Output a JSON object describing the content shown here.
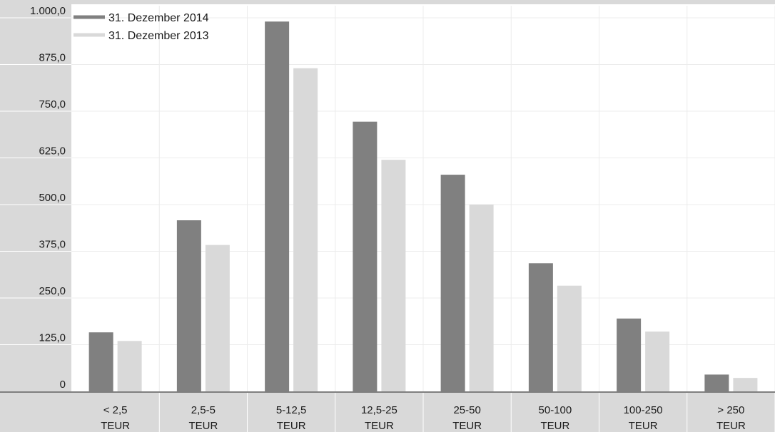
{
  "chart_data": {
    "type": "bar",
    "title": "",
    "xlabel": "",
    "ylabel": "",
    "ylim": [
      0,
      1000
    ],
    "yticks": [
      0,
      125,
      250,
      375,
      500,
      625,
      750,
      875,
      1000
    ],
    "ytick_labels": [
      "0",
      "125,0",
      "250,0",
      "375,0",
      "500,0",
      "625,0",
      "750,0",
      "875,0",
      "1.000,0"
    ],
    "categories": [
      [
        "< 2,5",
        "TEUR"
      ],
      [
        "2,5-5",
        "TEUR"
      ],
      [
        "5-12,5",
        "TEUR"
      ],
      [
        "12,5-25",
        "TEUR"
      ],
      [
        "25-50",
        "TEUR"
      ],
      [
        "50-100",
        "TEUR"
      ],
      [
        "100-250",
        "TEUR"
      ],
      [
        "> 250",
        "TEUR"
      ]
    ],
    "grid": true,
    "legend": "top-left",
    "series": [
      {
        "name": "31. Dezember 2014",
        "color": "#808080",
        "values": [
          158,
          458,
          990,
          722,
          580,
          343,
          195,
          45
        ]
      },
      {
        "name": "31. Dezember 2013",
        "color": "#d9d9d9",
        "values": [
          135,
          392,
          865,
          620,
          500,
          283,
          160,
          36
        ]
      }
    ]
  },
  "theme": {
    "axis_bg": "#d9d9d9",
    "grid_color": "#ececec",
    "baseline_color": "#7f7f7f"
  }
}
